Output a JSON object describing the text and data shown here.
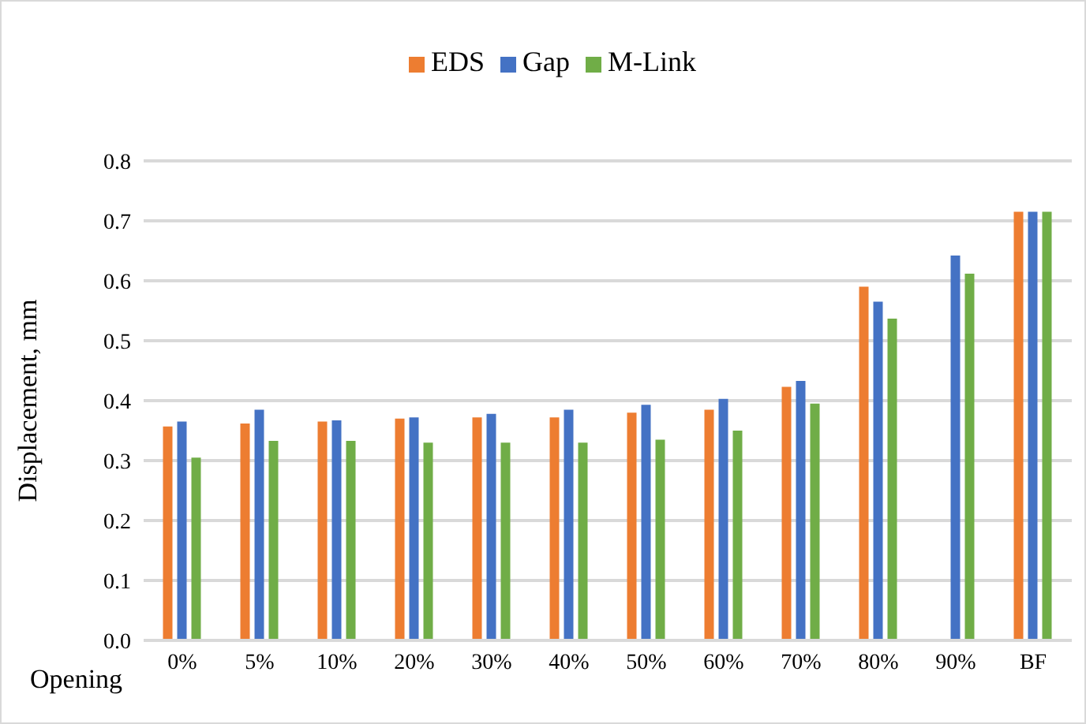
{
  "chart_data": {
    "type": "bar",
    "xlabel": "Opening",
    "ylabel": "Displacement, mm",
    "categories": [
      "0%",
      "5%",
      "10%",
      "20%",
      "30%",
      "40%",
      "50%",
      "60%",
      "70%",
      "80%",
      "90%",
      "BF"
    ],
    "series": [
      {
        "name": "EDS",
        "color": "#ed7d31",
        "values": [
          0.357,
          0.362,
          0.365,
          0.37,
          0.372,
          0.372,
          0.38,
          0.385,
          0.423,
          0.59,
          null,
          0.715
        ]
      },
      {
        "name": "Gap",
        "color": "#4472c4",
        "values": [
          0.365,
          0.385,
          0.367,
          0.372,
          0.378,
          0.385,
          0.393,
          0.403,
          0.433,
          0.565,
          0.642,
          0.715
        ]
      },
      {
        "name": "M-Link",
        "color": "#70ad47",
        "values": [
          0.305,
          0.333,
          0.333,
          0.33,
          0.33,
          0.33,
          0.335,
          0.35,
          0.395,
          0.537,
          0.612,
          0.715
        ]
      }
    ],
    "ylim": [
      0,
      0.8
    ],
    "yticks": [
      {
        "value": 0,
        "label": "0.0"
      },
      0.1,
      0.2,
      0.3,
      0.4,
      0.5,
      0.6,
      0.7,
      0.8
    ],
    "grid": "y",
    "legend": "top"
  }
}
